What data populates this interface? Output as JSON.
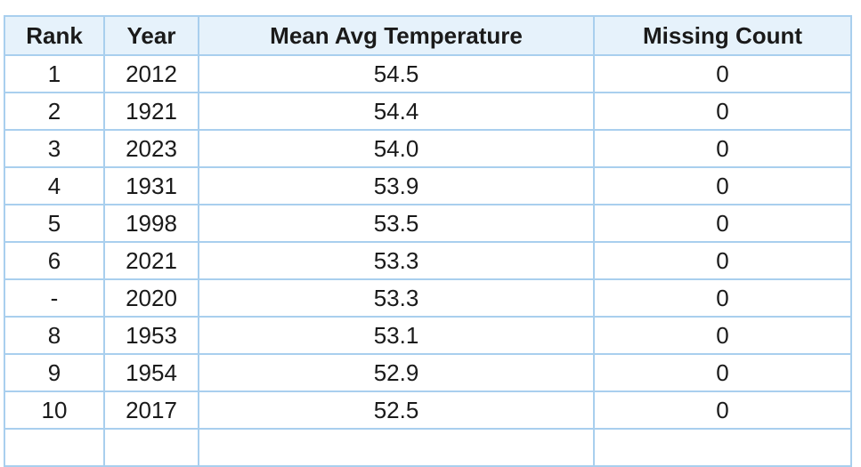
{
  "chart_data": {
    "type": "table",
    "columns": [
      "Rank",
      "Year",
      "Mean Avg Temperature",
      "Missing Count"
    ],
    "rows": [
      [
        "1",
        "2012",
        "54.5",
        "0"
      ],
      [
        "2",
        "1921",
        "54.4",
        "0"
      ],
      [
        "3",
        "2023",
        "54.0",
        "0"
      ],
      [
        "4",
        "1931",
        "53.9",
        "0"
      ],
      [
        "5",
        "1998",
        "53.5",
        "0"
      ],
      [
        "6",
        "2021",
        "53.3",
        "0"
      ],
      [
        "-",
        "2020",
        "53.3",
        "0"
      ],
      [
        "8",
        "1953",
        "53.1",
        "0"
      ],
      [
        "9",
        "1954",
        "52.9",
        "0"
      ],
      [
        "10",
        "2017",
        "52.5",
        "0"
      ]
    ]
  }
}
